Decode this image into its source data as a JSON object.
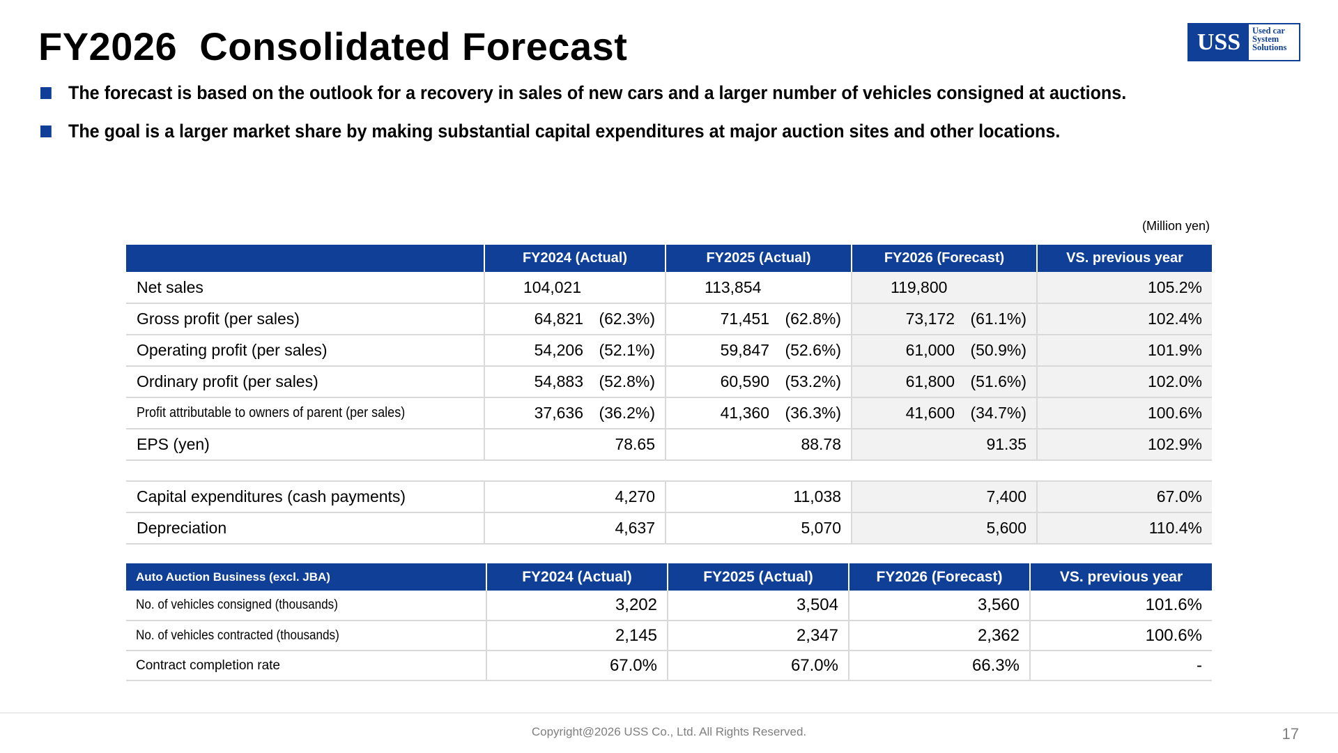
{
  "title": "FY2026  Consolidated Forecast",
  "logo": {
    "main": "USS",
    "line1": "Used car",
    "line2": "System",
    "line3": "Solutions"
  },
  "bullets": [
    "The forecast is based on the outlook for a recovery in sales of new cars and a larger number of vehicles consigned at auctions.",
    "The goal is a larger market share by making substantial capital expenditures at major auction sites and other locations."
  ],
  "unit_note": "(Million yen)",
  "table1": {
    "headers": [
      "",
      "FY2024 (Actual)",
      "FY2025 (Actual)",
      "FY2026 (Forecast)",
      "VS. previous year"
    ],
    "rows": [
      {
        "label": "Net sales",
        "c1": "104,021",
        "c2": "113,854",
        "c3": "119,800",
        "vs": "105.2%"
      },
      {
        "label": "Gross profit (per sales)",
        "c1": "64,821",
        "p1": "(62.3%)",
        "c2": "71,451",
        "p2": "(62.8%)",
        "c3": "73,172",
        "p3": "(61.1%)",
        "vs": "102.4%"
      },
      {
        "label": "Operating profit (per sales)",
        "c1": "54,206",
        "p1": "(52.1%)",
        "c2": "59,847",
        "p2": "(52.6%)",
        "c3": "61,000",
        "p3": "(50.9%)",
        "vs": "101.9%"
      },
      {
        "label": "Ordinary profit (per sales)",
        "c1": "54,883",
        "p1": "(52.8%)",
        "c2": "60,590",
        "p2": "(53.2%)",
        "c3": "61,800",
        "p3": "(51.6%)",
        "vs": "102.0%"
      },
      {
        "label": "Profit attributable to owners of parent (per sales)",
        "c1": "37,636",
        "p1": "(36.2%)",
        "c2": "41,360",
        "p2": "(36.3%)",
        "c3": "41,600",
        "p3": "(34.7%)",
        "vs": "100.6%"
      },
      {
        "label": "EPS (yen)",
        "c1": "78.65",
        "c2": "88.78",
        "c3": "91.35",
        "vs": "102.9%"
      },
      {
        "label": "Capital expenditures (cash payments)",
        "c1": "4,270",
        "c2": "11,038",
        "c3": "7,400",
        "vs": "67.0%"
      },
      {
        "label": "Depreciation",
        "c1": "4,637",
        "c2": "5,070",
        "c3": "5,600",
        "vs": "110.4%"
      }
    ]
  },
  "table2": {
    "headers": [
      "Auto Auction Business (excl. JBA)",
      "FY2024 (Actual)",
      "FY2025 (Actual)",
      "FY2026 (Forecast)",
      "VS. previous year"
    ],
    "rows": [
      {
        "label": "No. of vehicles consigned (thousands)",
        "c1": "3,202",
        "c2": "3,504",
        "c3": "3,560",
        "vs": "101.6%"
      },
      {
        "label": "No. of vehicles contracted (thousands)",
        "c1": "2,145",
        "c2": "2,347",
        "c3": "2,362",
        "vs": "100.6%"
      },
      {
        "label": "Contract completion rate",
        "c1": "67.0%",
        "c2": "67.0%",
        "c3": "66.3%",
        "vs": "-"
      }
    ]
  },
  "footer": {
    "copyright": "Copyright@2026 USS Co., Ltd. All Rights Reserved.",
    "page": "17"
  },
  "colors": {
    "brand_blue": "#0f3f96",
    "forecast_bg": "#f2f2f2",
    "grid": "#d9d9d9"
  }
}
